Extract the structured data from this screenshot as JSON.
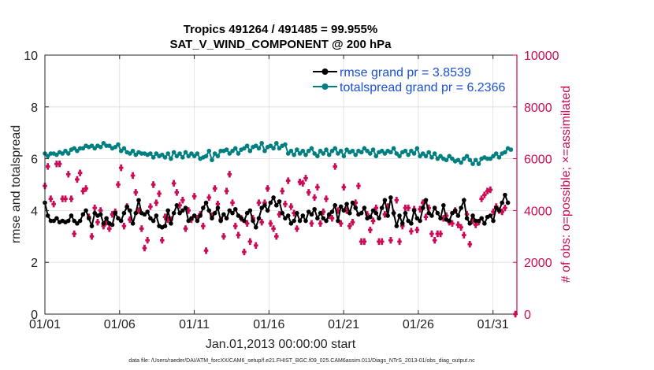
{
  "chart_data": {
    "type": "line",
    "title": "Tropics 491264 / 491485 = 99.955%",
    "subtitle": "SAT_V_WIND_COMPONENT @ 200 hPa",
    "xlabel": "Jan.01,2013 00:00:00 start",
    "ylabel": "rmse and totalspread",
    "ylabel_right": "# of obs: o=possible; ×=assimilated",
    "xlim": [
      0,
      31.6
    ],
    "ylim": [
      0,
      10
    ],
    "ylim_right": [
      0,
      10000
    ],
    "x_ticks": [
      0,
      5,
      10,
      15,
      20,
      25,
      30
    ],
    "x_tick_labels": [
      "01/01",
      "01/06",
      "01/11",
      "01/16",
      "01/21",
      "01/26",
      "01/31"
    ],
    "y_ticks": [
      0,
      2,
      4,
      6,
      8,
      10
    ],
    "y_tick_labels": [
      "0",
      "2",
      "4",
      "6",
      "8",
      "10"
    ],
    "y_right_ticks": [
      0,
      2000,
      4000,
      6000,
      8000,
      10000
    ],
    "y_right_tick_labels": [
      "0",
      "2000",
      "4000",
      "6000",
      "8000",
      "10000"
    ],
    "legend_position": "top-right",
    "footnote": "data file: /Users/raeder/DAI/ATM_forcXX/CAM6_setup/f.e21.FHIST_BGC.f09_025.CAM6assim.011/Diags_NTrS_2013-01/obs_diag_output.nc",
    "colors": {
      "rmse": "#000000",
      "spread": "#007f80",
      "obs": "#cc0a55",
      "legend_text": "#1a4fd6"
    },
    "series": [
      {
        "name": "rmse grand pr = 3.8539",
        "key": "rmse",
        "values": [
          4.3,
          3.8,
          3.6,
          3.6,
          3.7,
          3.55,
          3.6,
          3.55,
          3.6,
          3.8,
          3.6,
          3.5,
          3.6,
          3.85,
          4.0,
          3.7,
          3.4,
          3.9,
          3.8,
          3.85,
          3.5,
          3.7,
          3.5,
          3.45,
          3.9,
          3.7,
          3.6,
          3.9,
          4.15,
          4.0,
          3.5,
          3.9,
          4.4,
          3.9,
          3.85,
          3.95,
          3.7,
          3.6,
          3.8,
          3.4,
          3.35,
          3.4,
          4.0,
          3.5,
          3.9,
          4.2,
          3.9,
          4.0,
          4.1,
          3.6,
          3.7,
          3.8,
          3.6,
          3.8,
          4.1,
          4.3,
          4.0,
          3.7,
          3.9,
          4.1,
          3.6,
          3.85,
          3.7,
          4.0,
          3.9,
          4.05,
          3.8,
          3.7,
          3.6,
          3.9,
          4.0,
          3.6,
          3.35,
          3.7,
          4.1,
          4.2,
          4.0,
          4.3,
          4.5,
          4.2,
          4.35,
          3.9,
          3.7,
          3.8,
          3.5,
          3.6,
          3.9,
          3.6,
          3.8,
          3.6,
          3.95,
          3.85,
          4.05,
          3.7,
          3.9,
          3.7,
          3.6,
          3.85,
          3.95,
          4.2,
          3.6,
          4.15,
          4.0,
          4.25,
          3.9,
          4.3,
          4.1,
          3.85,
          3.9,
          4.1,
          3.7,
          3.75,
          4.0,
          3.9,
          3.7,
          4.1,
          4.4,
          3.8,
          4.5,
          3.9,
          3.4,
          3.8,
          3.5,
          3.9,
          3.6,
          3.5,
          4.0,
          3.7,
          3.6,
          4.1,
          4.4,
          3.9,
          3.8,
          4.1,
          3.9,
          3.7,
          4.2,
          3.65,
          3.6,
          3.9,
          4.0,
          3.8,
          4.1,
          4.4,
          3.7,
          3.5,
          3.8,
          3.6,
          3.6,
          3.7,
          3.5,
          3.75,
          3.8,
          3.6,
          4.1,
          4.0,
          4.3,
          4.6,
          4.3
        ]
      },
      {
        "name": "totalspread grand pr = 6.2366",
        "key": "spread",
        "values": [
          6.2,
          6.1,
          6.2,
          6.2,
          6.15,
          6.25,
          6.2,
          6.3,
          6.2,
          6.35,
          6.4,
          6.3,
          6.4,
          6.4,
          6.5,
          6.45,
          6.5,
          6.4,
          6.5,
          6.45,
          6.6,
          6.5,
          6.5,
          6.4,
          6.45,
          6.55,
          6.3,
          6.4,
          6.25,
          6.2,
          6.3,
          6.15,
          6.25,
          6.2,
          6.2,
          6.15,
          6.2,
          6.05,
          6.2,
          6.1,
          6.15,
          6.05,
          6.2,
          6.0,
          6.25,
          6.1,
          6.2,
          6.05,
          6.25,
          6.1,
          6.2,
          6.1,
          6.2,
          6.0,
          6.05,
          6.1,
          6.3,
          5.95,
          6.2,
          6.1,
          6.3,
          6.3,
          6.35,
          6.2,
          6.3,
          6.4,
          6.2,
          6.35,
          6.4,
          6.5,
          6.3,
          6.45,
          6.5,
          6.4,
          6.6,
          6.3,
          6.45,
          6.5,
          6.4,
          6.6,
          6.4,
          6.5,
          6.55,
          6.2,
          6.3,
          6.15,
          6.35,
          6.2,
          6.3,
          6.15,
          6.3,
          6.4,
          6.2,
          6.1,
          6.3,
          6.2,
          6.35,
          6.15,
          6.3,
          6.4,
          6.2,
          6.3,
          6.1,
          6.35,
          6.25,
          6.3,
          6.15,
          6.3,
          6.25,
          6.4,
          6.3,
          6.2,
          6.35,
          6.1,
          6.25,
          6.3,
          6.2,
          6.3,
          6.25,
          6.4,
          6.2,
          6.1,
          6.25,
          6.3,
          6.15,
          6.3,
          6.2,
          6.4,
          6.1,
          6.2,
          6.1,
          6.25,
          6.05,
          6.2,
          6.0,
          6.1,
          6.0,
          5.95,
          6.1,
          6.0,
          5.9,
          5.95,
          5.85,
          6.0,
          6.1,
          5.95,
          5.8,
          5.95,
          5.8,
          6.0,
          6.05,
          6.0,
          6.0,
          6.1,
          6.2,
          6.05,
          6.2,
          6.25,
          6.4,
          6.35
        ]
      },
      {
        "name": "# of obs assimilated",
        "key": "obs",
        "values": [
          4950,
          5700,
          4450,
          4250,
          5800,
          5800,
          4450,
          4450,
          5400,
          4450,
          3100,
          5200,
          5450,
          4750,
          4850,
          3750,
          3000,
          4100,
          3550,
          4000,
          3400,
          3550,
          3300,
          3850,
          3950,
          5000,
          5650,
          3400,
          4150,
          3650,
          5350,
          4700,
          4000,
          3300,
          2550,
          2850,
          4150,
          5000,
          4300,
          4650,
          2850,
          3750,
          3650,
          3650,
          5050,
          4700,
          4200,
          4400,
          3300,
          4000,
          3650,
          4550,
          3700,
          3850,
          3400,
          2450,
          4500,
          3800,
          4850,
          4250,
          3650,
          3000,
          4750,
          5400,
          4300,
          3400,
          3050,
          3700,
          2400,
          3500,
          2800,
          3700,
          2650,
          4300,
          3550,
          4300,
          4850,
          3500,
          3300,
          3000,
          3850,
          4750,
          4250,
          5150,
          4150,
          3900,
          3300,
          5100,
          5050,
          5250,
          4700,
          3500,
          4500,
          4900,
          3500,
          3950,
          4450,
          3800,
          3700,
          5700,
          4000,
          3500,
          4900,
          4000,
          3400,
          3550,
          4300,
          4950,
          2800,
          2800,
          3850,
          3250,
          3600,
          4100,
          2800,
          2800,
          3850,
          4150,
          2850,
          3900,
          4400,
          2800,
          3400,
          4100,
          4100,
          3200,
          4050,
          3250,
          4050,
          4300,
          3750,
          4100,
          3100,
          2850,
          3100,
          3100,
          3700,
          3800,
          3550,
          3500,
          4000,
          3450,
          3350,
          3050,
          3850,
          2700,
          3600,
          3450,
          3550,
          4450,
          4600,
          4750,
          4800,
          3950,
          4150,
          4000,
          3950,
          4100
        ],
        "final_value": 0
      }
    ]
  }
}
